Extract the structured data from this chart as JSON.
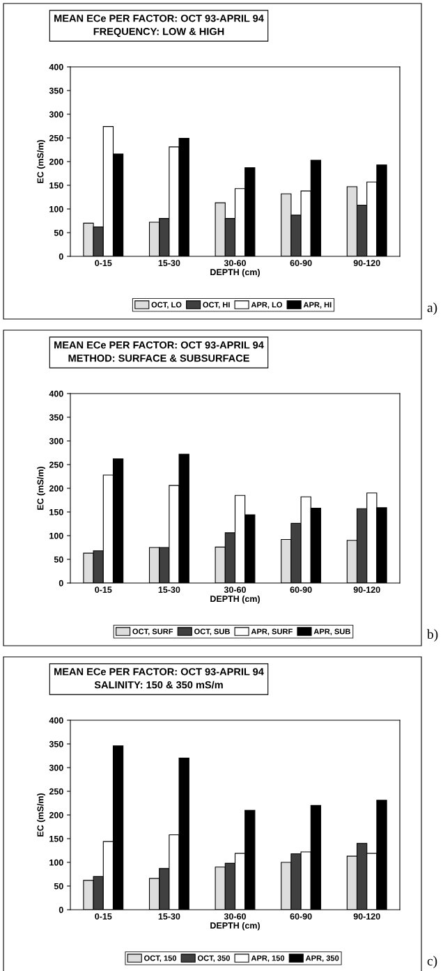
{
  "chart_data": [
    {
      "type": "bar",
      "title": "MEAN ECe PER FACTOR: OCT 93-APRIL 94",
      "subtitle": "FREQUENCY: LOW & HIGH",
      "xlabel": "DEPTH (cm)",
      "ylabel": "EC (mS/m)",
      "categories": [
        "0-15",
        "15-30",
        "30-60",
        "60-90",
        "90-120"
      ],
      "ylim": [
        0,
        400
      ],
      "yticks": [
        0,
        50,
        100,
        150,
        200,
        250,
        300,
        350,
        400
      ],
      "legend": "bottom",
      "annotations": [
        "a)"
      ],
      "series": [
        {
          "name": "OCT, LO",
          "color": "#dddddd",
          "values": [
            70,
            72,
            113,
            132,
            147
          ]
        },
        {
          "name": "OCT, HI",
          "color": "#404040",
          "values": [
            62,
            80,
            80,
            87,
            108
          ]
        },
        {
          "name": "APR, LO",
          "color": "#ffffff",
          "values": [
            274,
            231,
            143,
            138,
            157
          ]
        },
        {
          "name": "APR, HI",
          "color": "#000000",
          "values": [
            216,
            249,
            187,
            203,
            193
          ]
        }
      ]
    },
    {
      "type": "bar",
      "title": "MEAN ECe PER FACTOR: OCT 93-APRIL 94",
      "subtitle": "METHOD: SURFACE & SUBSURFACE",
      "xlabel": "DEPTH (cm)",
      "ylabel": "EC (mS/m)",
      "categories": [
        "0-15",
        "15-30",
        "30-60",
        "60-90",
        "90-120"
      ],
      "ylim": [
        0,
        400
      ],
      "yticks": [
        0,
        50,
        100,
        150,
        200,
        250,
        300,
        350,
        400
      ],
      "legend": "bottom",
      "annotations": [
        "b)"
      ],
      "series": [
        {
          "name": "OCT, SURF",
          "color": "#dddddd",
          "values": [
            63,
            75,
            76,
            92,
            90
          ]
        },
        {
          "name": "OCT, SUB",
          "color": "#404040",
          "values": [
            68,
            75,
            106,
            126,
            157
          ]
        },
        {
          "name": "APR, SURF",
          "color": "#ffffff",
          "values": [
            228,
            206,
            185,
            182,
            190
          ]
        },
        {
          "name": "APR, SUB",
          "color": "#000000",
          "values": [
            262,
            272,
            144,
            158,
            159
          ]
        }
      ]
    },
    {
      "type": "bar",
      "title": "MEAN ECe PER FACTOR: OCT 93-APRIL 94",
      "subtitle": "SALINITY: 150 & 350 mS/m",
      "xlabel": "DEPTH (cm)",
      "ylabel": "EC (mS/m)",
      "categories": [
        "0-15",
        "15-30",
        "30-60",
        "60-90",
        "90-120"
      ],
      "ylim": [
        0,
        400
      ],
      "yticks": [
        0,
        50,
        100,
        150,
        200,
        250,
        300,
        350,
        400
      ],
      "legend": "bottom",
      "annotations": [
        "c)"
      ],
      "series": [
        {
          "name": "OCT, 150",
          "color": "#dddddd",
          "values": [
            62,
            66,
            90,
            100,
            113
          ]
        },
        {
          "name": "OCT, 350",
          "color": "#404040",
          "values": [
            70,
            87,
            98,
            118,
            140
          ]
        },
        {
          "name": "APR, 150",
          "color": "#ffffff",
          "values": [
            144,
            158,
            119,
            122,
            119
          ]
        },
        {
          "name": "APR, 350",
          "color": "#000000",
          "values": [
            346,
            320,
            210,
            220,
            231
          ]
        }
      ]
    }
  ]
}
